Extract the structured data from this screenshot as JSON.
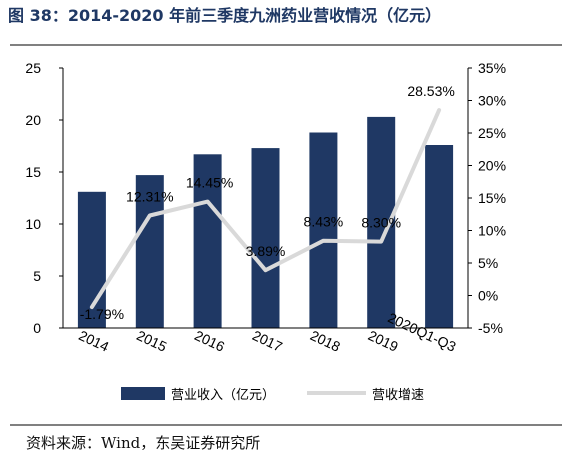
{
  "title": "图 38：2014-2020 年前三季度九洲药业营收情况（亿元）",
  "source": "资料来源：Wind，东吴证券研究所",
  "colors": {
    "bar": "#1f3864",
    "line": "#d9d9d9",
    "title": "#1f3864"
  },
  "chart_data": {
    "type": "bar",
    "title": "",
    "categories": [
      "2014",
      "2015",
      "2016",
      "2017",
      "2018",
      "2019",
      "2020Q1-Q3"
    ],
    "series": [
      {
        "name": "营业收入（亿元）",
        "type": "bar",
        "axis": "left",
        "values": [
          13.1,
          14.7,
          16.7,
          17.3,
          18.8,
          20.3,
          17.6
        ]
      },
      {
        "name": "营收增速",
        "type": "line",
        "axis": "right",
        "values": [
          -1.79,
          12.31,
          14.45,
          3.89,
          8.43,
          8.3,
          28.53
        ],
        "labels": [
          "-1.79%",
          "12.31%",
          "14.45%",
          "3.89%",
          "8.43%",
          "8.30%",
          "28.53%"
        ]
      }
    ],
    "y_left": {
      "lim": [
        0,
        25
      ],
      "ticks": [
        0,
        5,
        10,
        15,
        20,
        25
      ],
      "tick_labels": [
        "0",
        "5",
        "10",
        "15",
        "20",
        "25"
      ]
    },
    "y_right": {
      "lim": [
        -5,
        35
      ],
      "ticks": [
        -5,
        0,
        5,
        10,
        15,
        20,
        25,
        30,
        35
      ],
      "tick_labels": [
        "-5%",
        "0%",
        "5%",
        "10%",
        "15%",
        "20%",
        "25%",
        "30%",
        "35%"
      ]
    },
    "grid": false,
    "legend": "bottom"
  }
}
